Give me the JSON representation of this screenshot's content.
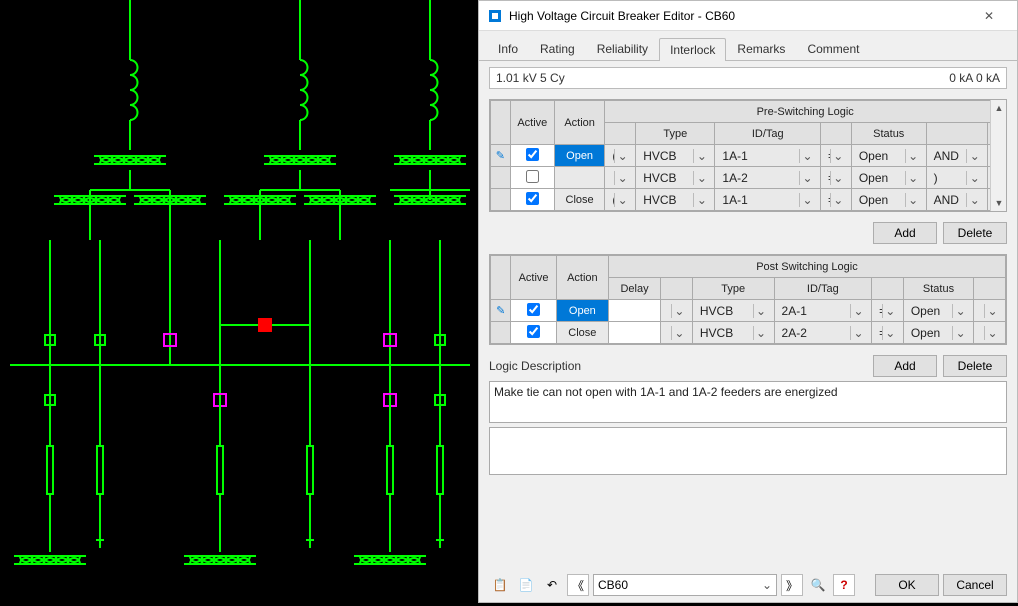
{
  "window": {
    "title": "High Voltage Circuit Breaker Editor - CB60",
    "close_glyph": "✕"
  },
  "tabs": {
    "items": [
      "Info",
      "Rating",
      "Reliability",
      "Interlock",
      "Remarks",
      "Comment"
    ],
    "active_index": 3
  },
  "status": {
    "left": "1.01 kV  5 Cy",
    "right": "0 kA  0 kA"
  },
  "preswitch": {
    "title": "Pre-Switching Logic",
    "headers": {
      "active": "Active",
      "action": "Action",
      "type": "Type",
      "idtag": "ID/Tag",
      "status": "Status"
    },
    "rows": [
      {
        "active": true,
        "selected": true,
        "action": "Open",
        "lparen": "(",
        "type": "HVCB",
        "idtag": "1A-1",
        "eq": "=",
        "status": "Open",
        "logic": "AND"
      },
      {
        "active": false,
        "selected": false,
        "action": "",
        "lparen": "",
        "type": "HVCB",
        "idtag": "1A-2",
        "eq": "=",
        "status": "Open",
        "logic": ")"
      },
      {
        "active": true,
        "selected": false,
        "action": "Close",
        "lparen": "(",
        "type": "HVCB",
        "idtag": "1A-1",
        "eq": "=",
        "status": "Open",
        "logic": "AND"
      }
    ],
    "buttons": {
      "add": "Add",
      "delete": "Delete"
    }
  },
  "postswitch": {
    "title": "Post Switching Logic",
    "headers": {
      "active": "Active",
      "action": "Action",
      "delay": "Delay",
      "type": "Type",
      "idtag": "ID/Tag",
      "status": "Status"
    },
    "rows": [
      {
        "active": true,
        "selected": true,
        "action": "Open",
        "delay": "",
        "type": "HVCB",
        "idtag": "2A-1",
        "eq": "=",
        "status": "Open"
      },
      {
        "active": true,
        "selected": false,
        "action": "Close",
        "delay": "",
        "type": "HVCB",
        "idtag": "2A-2",
        "eq": "=",
        "status": "Open"
      }
    ],
    "buttons": {
      "add": "Add",
      "delete": "Delete"
    }
  },
  "logic_desc": {
    "label": "Logic Description",
    "text": "Make tie can not open with 1A-1 and 1A-2 feeders are energized"
  },
  "bottom": {
    "device": "CB60",
    "ok": "OK",
    "cancel": "Cancel",
    "icons": {
      "copy": "📋",
      "paste": "📄",
      "undo": "↶",
      "prev": "《",
      "next": "》",
      "find": "🔍",
      "help": "?"
    }
  },
  "schematic": {
    "background": "#000000",
    "wire_color": "#00ff00",
    "closed_breaker_color": "#ff0000",
    "open_breaker_color": "#ff00ff",
    "stroke_width": 2
  }
}
